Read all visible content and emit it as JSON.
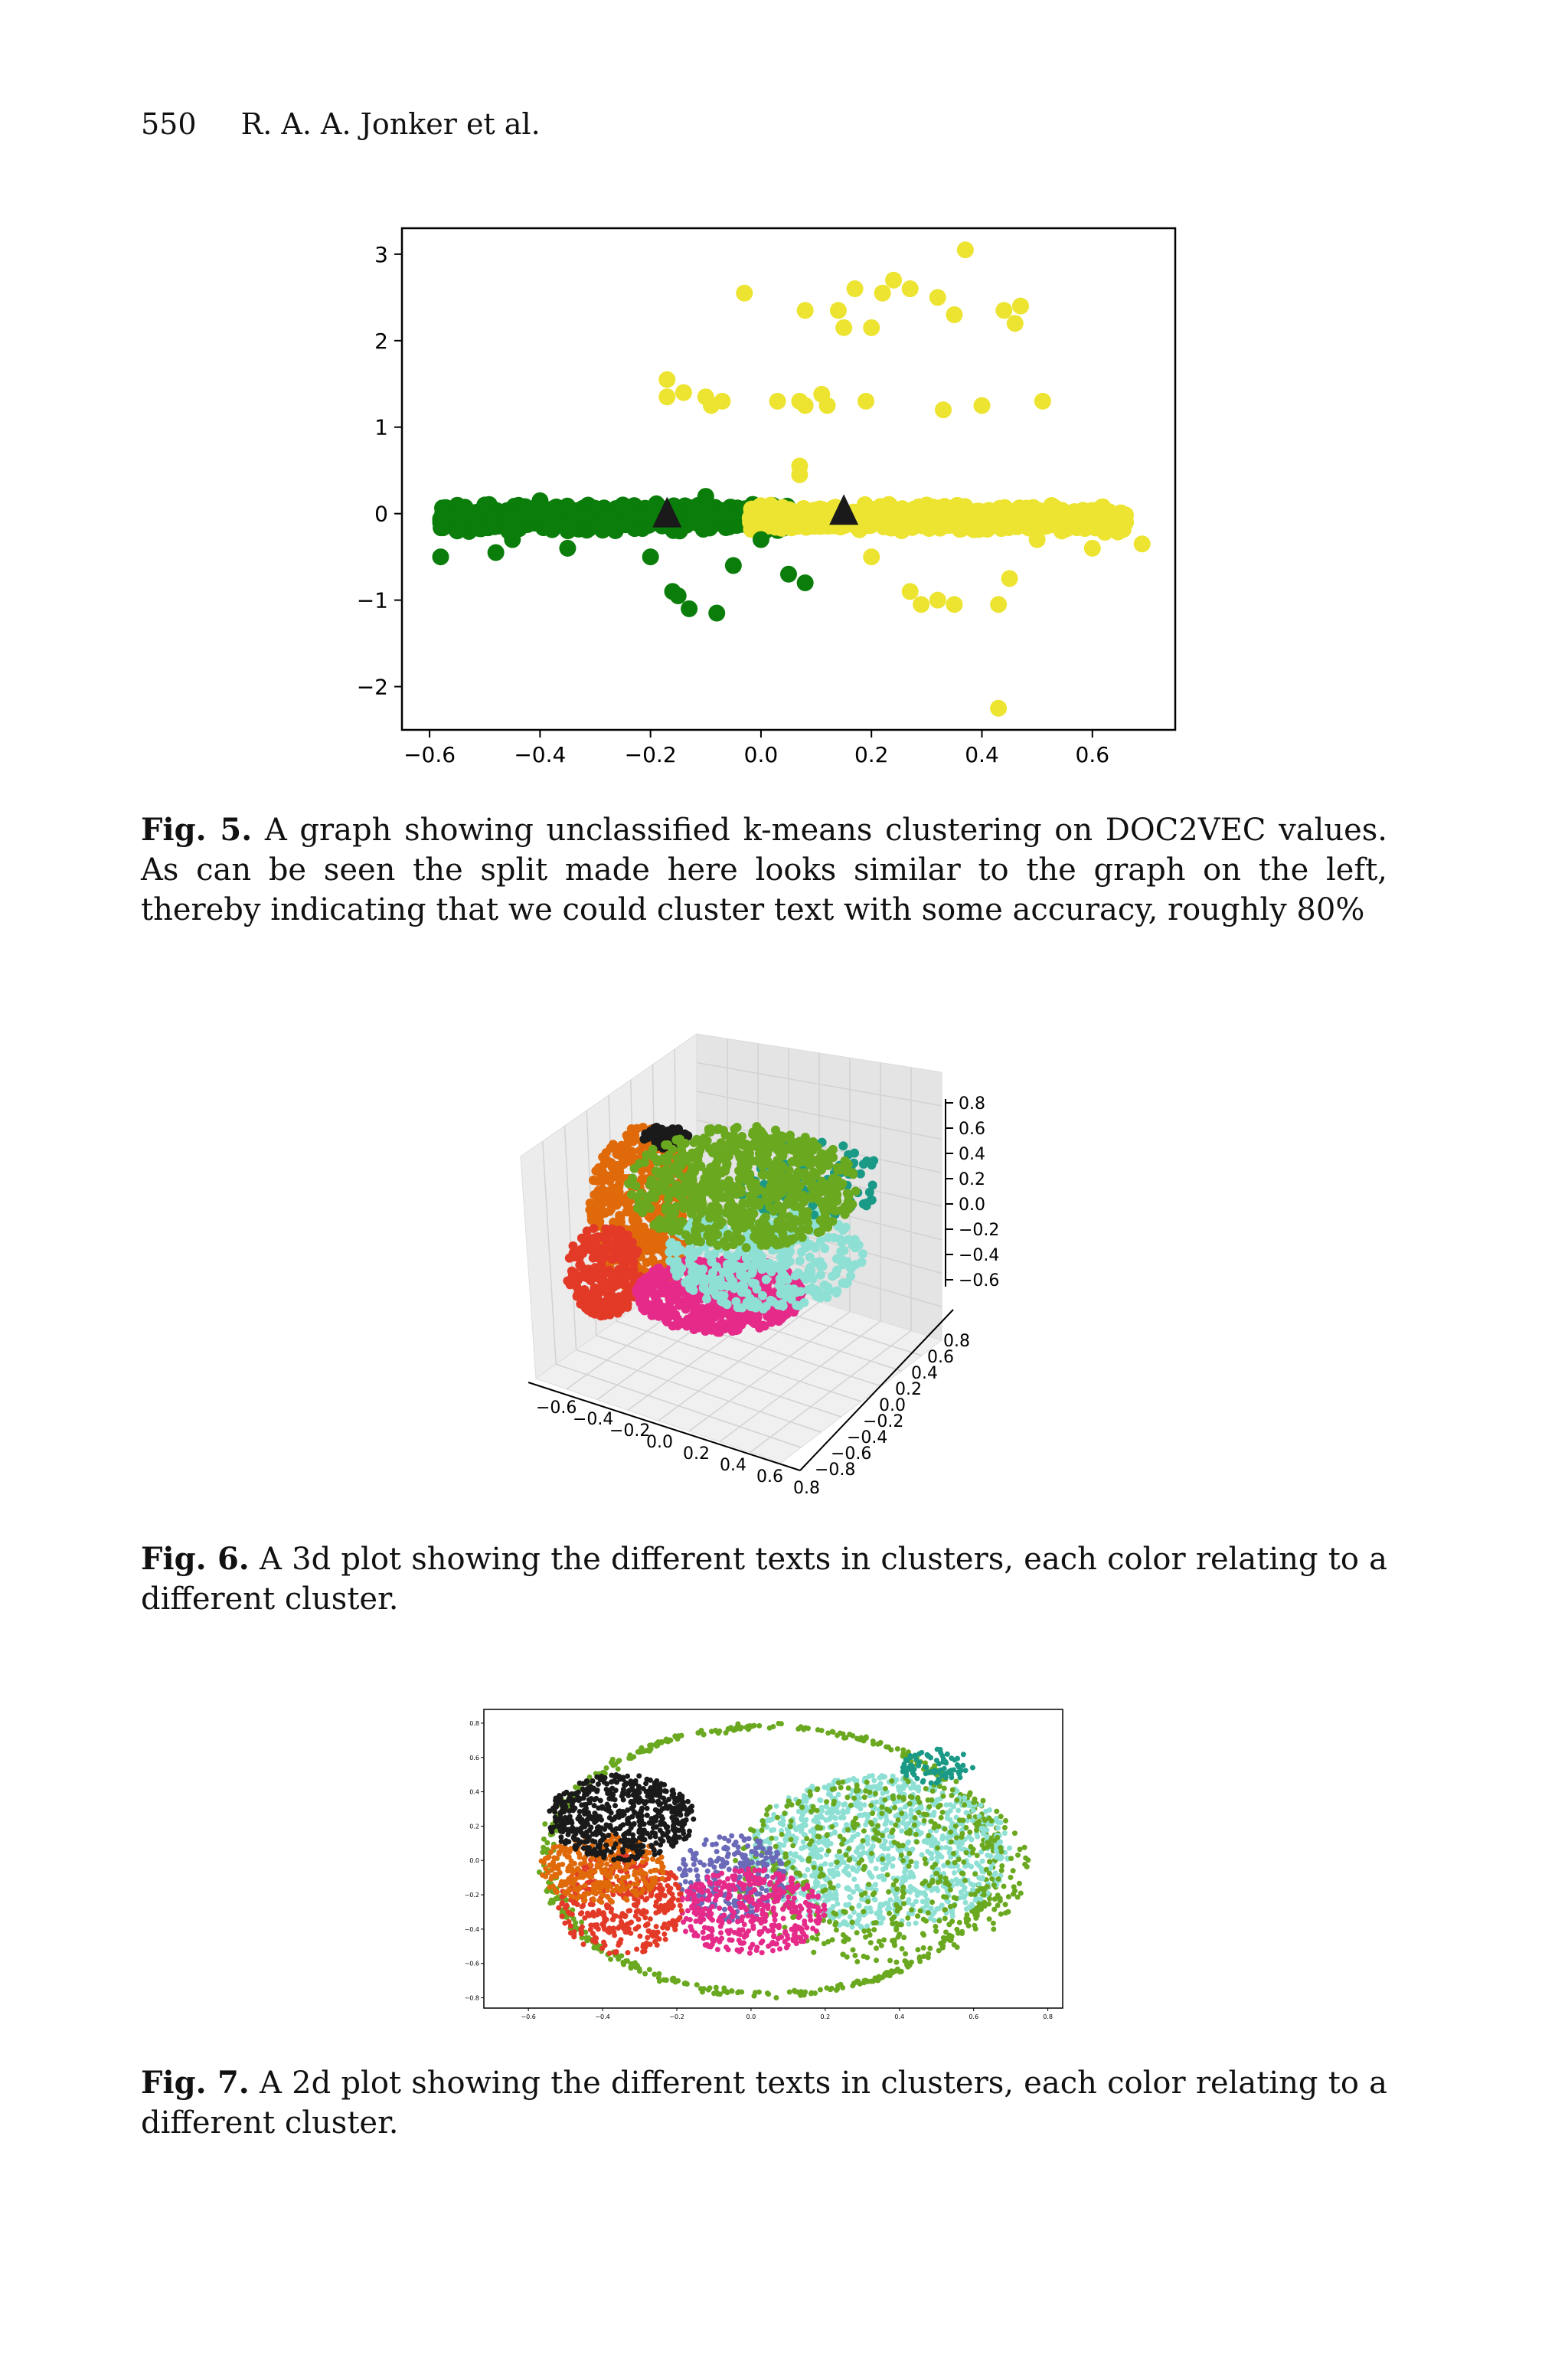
{
  "header": {
    "page_number": "550",
    "authors": "R. A. A. Jonker et al."
  },
  "figures": [
    {
      "label": "Fig. 5.",
      "caption": "A graph showing unclassified k-means clustering on DOC2VEC values. As can be seen the split made here looks similar to the graph on the left, thereby indicating that we could cluster text with some accuracy, roughly 80%"
    },
    {
      "label": "Fig. 6.",
      "caption": "A 3d plot showing the different texts in clusters, each color relating to a different cluster."
    },
    {
      "label": "Fig. 7.",
      "caption": "A 2d plot showing the different texts in clusters, each color relating to a different cluster."
    }
  ],
  "chart_data": [
    {
      "type": "scatter",
      "title": "",
      "xlabel": "",
      "ylabel": "",
      "xlim": [
        -0.65,
        0.75
      ],
      "ylim": [
        -2.5,
        3.3
      ],
      "x_ticks": [
        "−0.6",
        "−0.4",
        "−0.2",
        "0.0",
        "0.2",
        "0.4",
        "0.6"
      ],
      "y_ticks": [
        "−2",
        "−1",
        "0",
        "1",
        "2",
        "3"
      ],
      "colors": {
        "cluster_green": "#0a7d0a",
        "cluster_yellow": "#ece430",
        "centroid": "#1a1a1a"
      },
      "centroids": [
        {
          "x": -0.17,
          "y": 0.0
        },
        {
          "x": 0.15,
          "y": 0.03
        }
      ],
      "series": [
        {
          "cluster": 1,
          "points": [
            [
              -0.58,
              -0.5
            ],
            [
              -0.55,
              -0.2
            ],
            [
              -0.5,
              0.1
            ],
            [
              -0.45,
              -0.3
            ],
            [
              -0.4,
              0.15
            ],
            [
              -0.35,
              -0.4
            ],
            [
              -0.3,
              -0.1
            ],
            [
              -0.25,
              0.1
            ],
            [
              -0.2,
              -0.5
            ],
            [
              -0.16,
              -0.9
            ],
            [
              -0.15,
              -0.95
            ],
            [
              -0.13,
              -1.1
            ],
            [
              -0.08,
              -1.15
            ],
            [
              -0.05,
              -0.6
            ],
            [
              0.0,
              -0.3
            ],
            [
              0.05,
              -0.7
            ],
            [
              0.08,
              -0.8
            ],
            [
              -0.1,
              0.2
            ],
            [
              -0.48,
              -0.45
            ],
            [
              -0.57,
              0.05
            ]
          ]
        },
        {
          "cluster": 2,
          "points": [
            [
              -0.03,
              2.55
            ],
            [
              0.08,
              2.35
            ],
            [
              0.14,
              2.35
            ],
            [
              0.15,
              2.15
            ],
            [
              0.17,
              2.6
            ],
            [
              0.2,
              2.15
            ],
            [
              0.22,
              2.55
            ],
            [
              0.24,
              2.7
            ],
            [
              0.27,
              2.6
            ],
            [
              0.32,
              2.5
            ],
            [
              0.35,
              2.3
            ],
            [
              0.37,
              3.05
            ],
            [
              0.44,
              2.35
            ],
            [
              0.46,
              2.2
            ],
            [
              0.47,
              2.4
            ],
            [
              -0.17,
              1.55
            ],
            [
              -0.17,
              1.35
            ],
            [
              -0.14,
              1.4
            ],
            [
              -0.1,
              1.35
            ],
            [
              -0.09,
              1.25
            ],
            [
              -0.07,
              1.3
            ],
            [
              0.03,
              1.3
            ],
            [
              0.07,
              1.3
            ],
            [
              0.08,
              1.25
            ],
            [
              0.11,
              1.38
            ],
            [
              0.12,
              1.25
            ],
            [
              0.19,
              1.3
            ],
            [
              0.33,
              1.2
            ],
            [
              0.4,
              1.25
            ],
            [
              0.51,
              1.3
            ],
            [
              0.07,
              0.55
            ],
            [
              0.07,
              0.45
            ],
            [
              0.27,
              -0.9
            ],
            [
              0.29,
              -1.05
            ],
            [
              0.32,
              -1.0
            ],
            [
              0.35,
              -1.05
            ],
            [
              0.43,
              -1.05
            ],
            [
              0.43,
              -2.25
            ],
            [
              0.45,
              -0.75
            ],
            [
              0.6,
              -0.4
            ],
            [
              0.66,
              -0.1
            ],
            [
              0.69,
              -0.35
            ],
            [
              0.3,
              0.1
            ],
            [
              0.5,
              -0.3
            ],
            [
              0.2,
              -0.5
            ]
          ]
        }
      ]
    },
    {
      "type": "scatter",
      "title": "",
      "z_ticks": [
        "0.8",
        "0.6",
        "0.4",
        "0.2",
        "0.0",
        "−0.2",
        "−0.4",
        "−0.6"
      ],
      "x_ticks": [
        "−0.6",
        "−0.4",
        "−0.2",
        "0.0",
        "0.2",
        "0.4",
        "0.6",
        "0.8"
      ],
      "y_ticks": [
        "0.8",
        "0.6",
        "0.4",
        "0.2",
        "0.0",
        "−0.2",
        "−0.4",
        "−0.6",
        "−0.8"
      ],
      "colors": [
        "#e06a0a",
        "#6aa820",
        "#e52a8a",
        "#e33a28",
        "#8ee0d4",
        "#1a1a1a",
        "#1a9a86",
        "#6a6ab8"
      ]
    },
    {
      "type": "scatter",
      "title": "",
      "x_ticks": [
        "−0.6",
        "−0.4",
        "−0.2",
        "0.0",
        "0.2",
        "0.4",
        "0.6",
        "0.8"
      ],
      "y_ticks": [
        "0.8",
        "0.6",
        "0.4",
        "0.2",
        "0.0",
        "−0.2",
        "−0.4",
        "−0.6",
        "−0.8"
      ],
      "xlim": [
        -0.72,
        0.84
      ],
      "ylim": [
        -0.86,
        0.88
      ],
      "colors": [
        "#6aa820",
        "#1a1a1a",
        "#e06a0a",
        "#e33a28",
        "#e52a8a",
        "#8ee0d4",
        "#1a9a86",
        "#6a6ab8"
      ]
    }
  ]
}
